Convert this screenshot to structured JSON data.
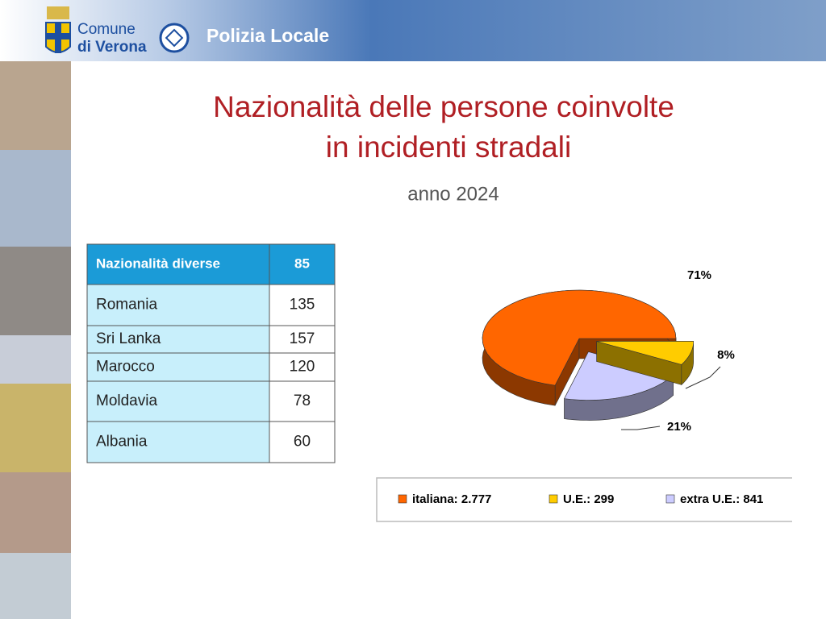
{
  "header": {
    "logo_line1": "Comune",
    "logo_line2": "di Verona",
    "title": "Polizia Locale"
  },
  "title": [
    "Nazionalità delle persone coinvolte",
    "in incidenti stradali"
  ],
  "subtitle": "anno 2024",
  "table": {
    "header": [
      "Nazionalità diverse",
      85
    ],
    "rows": [
      [
        "Romania",
        135
      ],
      [
        "Sri Lanka",
        157
      ],
      [
        "Marocco",
        120
      ],
      [
        "Moldavia",
        78
      ],
      [
        "Albania",
        60
      ]
    ]
  },
  "chart_data": {
    "type": "pie",
    "categories": [
      "italiana: 2.777",
      "U.E.: 299",
      "extra U.E.: 841"
    ],
    "values": [
      71,
      8,
      21
    ],
    "value_labels": [
      "71%",
      "8%",
      "21%"
    ],
    "colors": [
      "#ff6600",
      "#ffcc00",
      "#ccccff"
    ]
  }
}
